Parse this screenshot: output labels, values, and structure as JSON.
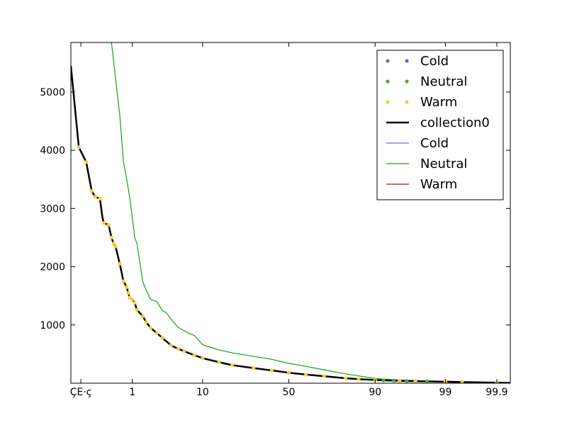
{
  "chart_data": {
    "type": "line",
    "title": "",
    "xlabel": "",
    "ylabel": "",
    "x_scale": "probability",
    "x_ticks": [
      {
        "value": 0.1,
        "label": "ÇE·ç"
      },
      {
        "value": 1,
        "label": "1"
      },
      {
        "value": 10,
        "label": "10"
      },
      {
        "value": 50,
        "label": "50"
      },
      {
        "value": 90,
        "label": "90"
      },
      {
        "value": 99,
        "label": "99"
      },
      {
        "value": 99.9,
        "label": "99.9"
      }
    ],
    "y_ticks": [
      1000,
      2000,
      3000,
      4000,
      5000
    ],
    "xlim": [
      0.06,
      99.95
    ],
    "ylim": [
      0,
      5850
    ],
    "grid": false,
    "legend": {
      "position": "top-right",
      "entries": [
        {
          "label": "Cold",
          "style": "dots",
          "color": "#6a6ad6"
        },
        {
          "label": "Neutral",
          "style": "dots",
          "color": "#5e9a48"
        },
        {
          "label": "Warm",
          "style": "dots",
          "color": "#f6cd3a"
        },
        {
          "label": "collection0",
          "style": "thick-line",
          "color": "#000000"
        },
        {
          "label": "Cold",
          "style": "line",
          "color": "#6a6ad6"
        },
        {
          "label": "Neutral",
          "style": "line",
          "color": "#11a411"
        },
        {
          "label": "Warm",
          "style": "line",
          "color": "#a01818"
        }
      ]
    },
    "series": [
      {
        "name": "collection0",
        "kind": "line",
        "color": "#000000",
        "x": [
          0.06,
          0.09,
          0.13,
          0.17,
          0.2,
          0.25,
          0.28,
          0.3,
          0.37,
          0.42,
          0.46,
          0.5,
          0.6,
          0.7,
          0.8,
          0.85,
          0.9,
          1.0,
          1.1,
          1.2,
          1.5,
          1.7,
          2,
          2.5,
          3,
          4,
          5,
          6,
          8,
          10,
          15,
          20,
          30,
          40,
          50,
          60,
          70,
          80,
          85,
          90,
          95,
          97,
          99,
          99.5,
          99.9,
          99.95
        ],
        "y": [
          5450,
          4050,
          3800,
          3300,
          3200,
          3170,
          2850,
          2750,
          2720,
          2500,
          2400,
          2350,
          2050,
          1750,
          1650,
          1550,
          1470,
          1440,
          1380,
          1260,
          1150,
          1050,
          950,
          860,
          780,
          650,
          590,
          550,
          480,
          430,
          360,
          310,
          260,
          220,
          180,
          150,
          120,
          85,
          70,
          55,
          40,
          35,
          25,
          20,
          10,
          5
        ]
      },
      {
        "name": "Warm",
        "kind": "dots",
        "color": "#f6cd3a",
        "x": [
          0.09,
          0.13,
          0.17,
          0.2,
          0.25,
          0.3,
          0.37,
          0.42,
          0.46,
          0.5,
          0.6,
          0.7,
          0.8,
          0.85,
          0.9,
          1.0,
          1.1,
          1.2,
          1.5,
          1.7,
          2,
          2.5,
          3,
          4,
          5,
          6,
          8,
          10,
          15,
          20,
          30,
          40,
          50,
          60,
          70,
          80,
          85,
          90,
          95,
          97,
          99,
          99.5,
          99.9
        ],
        "y": [
          4050,
          3800,
          3300,
          3200,
          3170,
          2750,
          2720,
          2500,
          2400,
          2350,
          2050,
          1750,
          1650,
          1550,
          1470,
          1440,
          1380,
          1260,
          1150,
          1050,
          950,
          860,
          780,
          650,
          590,
          550,
          480,
          430,
          360,
          310,
          260,
          220,
          180,
          150,
          120,
          85,
          70,
          55,
          40,
          35,
          25,
          20,
          10
        ]
      },
      {
        "name": "Neutral",
        "kind": "dots",
        "color": "#5e9a48",
        "x": [
          0.6,
          1.2,
          3,
          10,
          50,
          90,
          92,
          94,
          95,
          96,
          97,
          98,
          99
        ],
        "y": [
          2050,
          1260,
          780,
          430,
          180,
          55,
          50,
          45,
          40,
          38,
          35,
          30,
          25
        ]
      },
      {
        "name": "Neutral",
        "kind": "line",
        "color": "#11a411",
        "x": [
          0.42,
          0.6,
          0.7,
          0.8,
          0.9,
          1.0,
          1.1,
          1.2,
          1.5,
          1.7,
          2,
          2.5,
          3,
          3.5,
          4,
          5,
          6,
          7,
          8,
          10,
          12,
          15,
          20,
          30,
          40,
          50,
          60,
          70,
          80,
          90,
          95,
          99,
          99.9
        ],
        "y": [
          5850,
          4600,
          3800,
          3500,
          3200,
          2850,
          2500,
          2400,
          1740,
          1600,
          1440,
          1400,
          1250,
          1200,
          1100,
          960,
          900,
          850,
          820,
          660,
          620,
          570,
          520,
          460,
          410,
          340,
          290,
          230,
          160,
          80,
          55,
          30,
          10
        ]
      }
    ]
  }
}
